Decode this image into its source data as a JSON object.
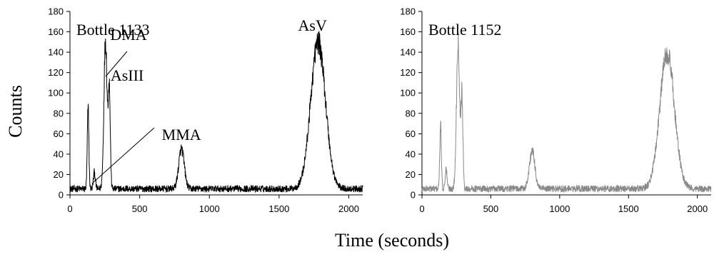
{
  "figure": {
    "ylabel": "Counts",
    "xlabel": "Time (seconds)"
  },
  "chart_data": [
    {
      "type": "line",
      "title": "Bottle 1133",
      "series_color": "#000000",
      "xlim": [
        0,
        2100
      ],
      "ylim": [
        0,
        180
      ],
      "x_ticks": [
        0,
        500,
        1000,
        1500,
        2000
      ],
      "y_ticks": [
        0,
        20,
        40,
        60,
        80,
        100,
        120,
        140,
        160,
        180
      ],
      "peaks": [
        {
          "x": 130,
          "height": 85
        },
        {
          "x": 175,
          "height": 22
        },
        {
          "x": 255,
          "height": 152
        },
        {
          "x": 282,
          "height": 105
        },
        {
          "x": 800,
          "height": 45
        },
        {
          "x": 1780,
          "height": 150
        }
      ],
      "baseline": 6,
      "annotations": [
        {
          "text": "DMA",
          "x": 420,
          "y": 152
        },
        {
          "text": "AsIII",
          "x": 410,
          "y": 112
        },
        {
          "text": "MMA",
          "x": 800,
          "y": 54
        },
        {
          "text": "AsV",
          "x": 1740,
          "y": 161
        }
      ]
    },
    {
      "type": "line",
      "title": "Bottle 1152",
      "series_color": "#888888",
      "xlim": [
        0,
        2100
      ],
      "ylim": [
        0,
        180
      ],
      "x_ticks": [
        0,
        500,
        1000,
        1500,
        2000
      ],
      "y_ticks": [
        0,
        20,
        40,
        60,
        80,
        100,
        120,
        140,
        160,
        180
      ],
      "peaks": [
        {
          "x": 135,
          "height": 68
        },
        {
          "x": 175,
          "height": 25
        },
        {
          "x": 262,
          "height": 152
        },
        {
          "x": 290,
          "height": 95
        },
        {
          "x": 800,
          "height": 43
        },
        {
          "x": 1780,
          "height": 140
        }
      ],
      "baseline": 6,
      "annotations": []
    }
  ]
}
